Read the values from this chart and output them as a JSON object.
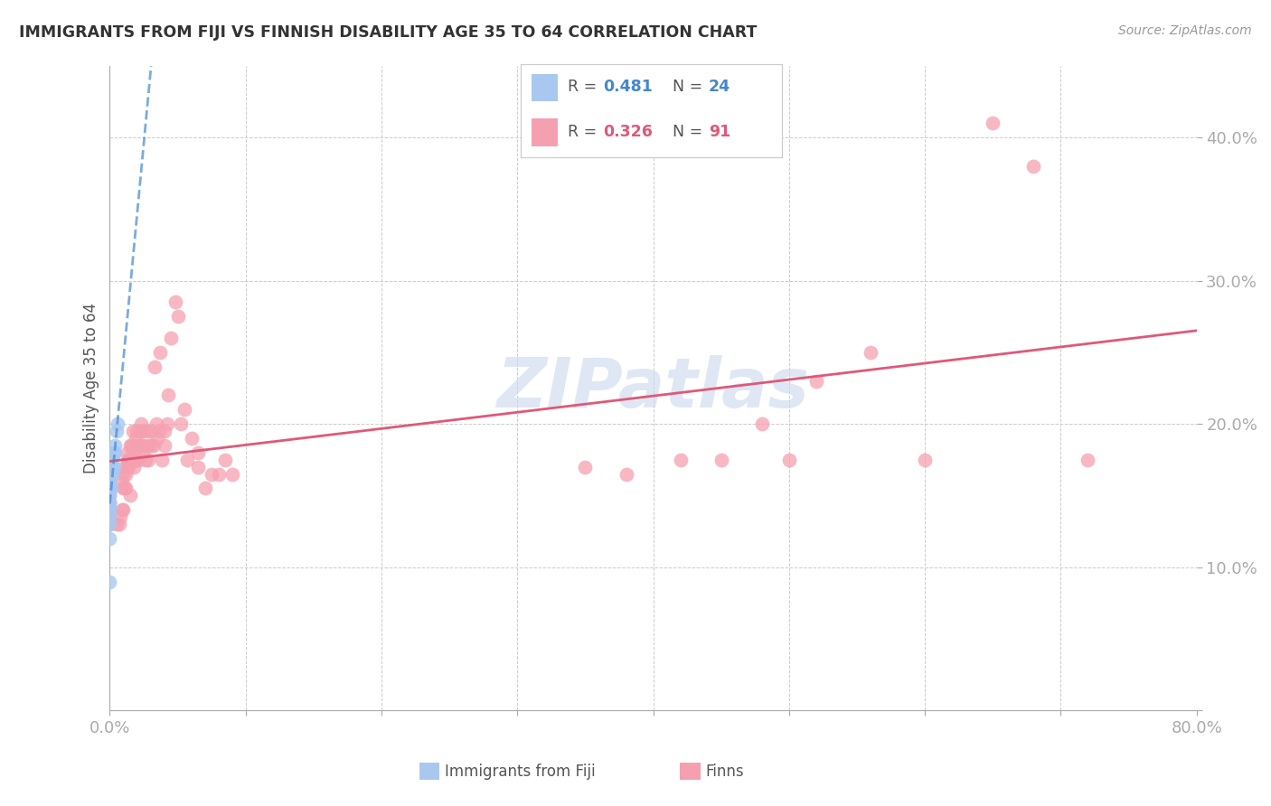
{
  "title": "IMMIGRANTS FROM FIJI VS FINNISH DISABILITY AGE 35 TO 64 CORRELATION CHART",
  "source": "Source: ZipAtlas.com",
  "ylabel": "Disability Age 35 to 64",
  "xmin": 0.0,
  "xmax": 0.8,
  "ymin": 0.0,
  "ymax": 0.45,
  "fiji_R": 0.481,
  "fiji_N": 24,
  "finn_R": 0.326,
  "finn_N": 91,
  "fiji_color": "#a8c8f0",
  "finn_color": "#f5a0b0",
  "fiji_trendline_color": "#4488cc",
  "finn_trendline_color": "#e05878",
  "watermark_color": "#c8d8ec",
  "fiji_x": [
    0.0,
    0.0,
    0.0,
    0.0,
    0.0,
    0.0,
    0.0,
    0.0,
    0.0,
    0.0,
    0.0,
    0.0,
    0.0,
    0.0,
    0.001,
    0.001,
    0.002,
    0.002,
    0.003,
    0.003,
    0.004,
    0.004,
    0.005,
    0.006
  ],
  "fiji_y": [
    0.09,
    0.12,
    0.13,
    0.135,
    0.14,
    0.14,
    0.145,
    0.145,
    0.15,
    0.155,
    0.155,
    0.16,
    0.165,
    0.17,
    0.155,
    0.17,
    0.165,
    0.175,
    0.17,
    0.18,
    0.18,
    0.185,
    0.195,
    0.2
  ],
  "finn_x": [
    0.0,
    0.0,
    0.0,
    0.0,
    0.0,
    0.0,
    0.0,
    0.0,
    0.0,
    0.005,
    0.007,
    0.008,
    0.009,
    0.009,
    0.01,
    0.01,
    0.01,
    0.011,
    0.011,
    0.012,
    0.012,
    0.013,
    0.013,
    0.013,
    0.014,
    0.014,
    0.015,
    0.015,
    0.015,
    0.016,
    0.016,
    0.017,
    0.017,
    0.017,
    0.018,
    0.018,
    0.019,
    0.019,
    0.02,
    0.02,
    0.021,
    0.022,
    0.022,
    0.023,
    0.023,
    0.024,
    0.025,
    0.025,
    0.026,
    0.027,
    0.028,
    0.028,
    0.03,
    0.03,
    0.032,
    0.033,
    0.034,
    0.035,
    0.036,
    0.037,
    0.038,
    0.04,
    0.04,
    0.042,
    0.043,
    0.045,
    0.048,
    0.05,
    0.052,
    0.055,
    0.057,
    0.06,
    0.065,
    0.065,
    0.07,
    0.075,
    0.08,
    0.085,
    0.09,
    0.35,
    0.38,
    0.42,
    0.45,
    0.48,
    0.5,
    0.52,
    0.56,
    0.6,
    0.65,
    0.68,
    0.72
  ],
  "finn_y": [
    0.13,
    0.135,
    0.14,
    0.14,
    0.145,
    0.15,
    0.155,
    0.155,
    0.16,
    0.13,
    0.13,
    0.135,
    0.14,
    0.16,
    0.14,
    0.155,
    0.165,
    0.155,
    0.17,
    0.155,
    0.165,
    0.17,
    0.175,
    0.18,
    0.17,
    0.175,
    0.15,
    0.175,
    0.185,
    0.175,
    0.185,
    0.175,
    0.18,
    0.195,
    0.17,
    0.185,
    0.175,
    0.19,
    0.175,
    0.195,
    0.175,
    0.185,
    0.195,
    0.2,
    0.185,
    0.18,
    0.185,
    0.195,
    0.175,
    0.195,
    0.185,
    0.175,
    0.185,
    0.195,
    0.185,
    0.24,
    0.2,
    0.19,
    0.195,
    0.25,
    0.175,
    0.185,
    0.195,
    0.2,
    0.22,
    0.26,
    0.285,
    0.275,
    0.2,
    0.21,
    0.175,
    0.19,
    0.17,
    0.18,
    0.155,
    0.165,
    0.165,
    0.175,
    0.165,
    0.17,
    0.165,
    0.175,
    0.175,
    0.2,
    0.175,
    0.23,
    0.25,
    0.175,
    0.41,
    0.38,
    0.175
  ]
}
